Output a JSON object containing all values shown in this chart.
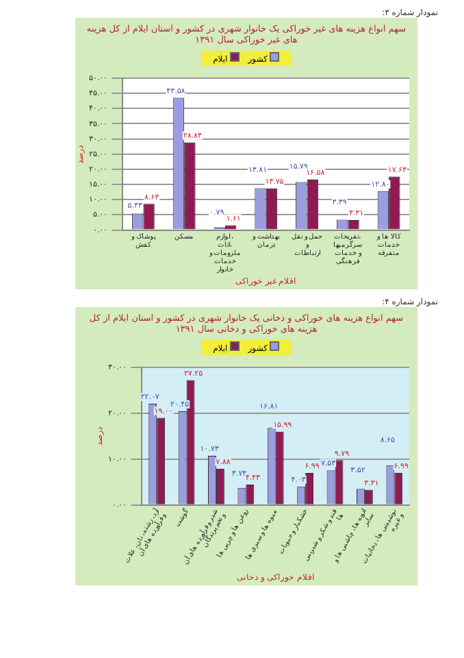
{
  "chart_data": [
    {
      "type": "bar",
      "title": "سهم انواع هزینه های غیر خوراکی یک خانوار شهری در کشور و استان ایلام از کل هزینه های غیر خوراکی سال ۱۳۹۱",
      "xlabel": "اقلام غیر خوراکی",
      "ylabel": "درصد",
      "annotations": [
        "نمودار شماره ۳:"
      ],
      "categories": [
        "پوشاک و کفش",
        "مسکن",
        "لوازم، اثاث، ملزومات و خدمات خانوار",
        "بهداشت و درمان",
        "حمل و نقل و ارتباطات",
        "تفریحات، سرگرمیها و خدمات فرهنگی",
        "کالا ها و خدمات متفرقه"
      ],
      "series": [
        {
          "name": "کشور",
          "color": "#9c9ce0",
          "values": [
            5.43,
            43.58,
            0.79,
            13.81,
            15.79,
            3.39,
            12.8
          ],
          "value_labels": [
            "۵.۴۳",
            "۴۳.۵۸",
            "۰.۷۹",
            "۱۳.۸۱",
            "۱۵.۷۹",
            "۳.۳۹",
            "۱۲.۸۰"
          ]
        },
        {
          "name": "ایلام",
          "color": "#8e1c52",
          "values": [
            8.63,
            28.84,
            1.61,
            13.75,
            16.58,
            3.31,
            17.63
          ],
          "value_labels": [
            "۸.۶۳",
            "۲۸.۸۴",
            "۱.۶۱",
            "۱۳.۷۵",
            "۱۶.۵۸",
            "۳.۳۱",
            "۱۷.۶۳"
          ]
        }
      ],
      "ylim": [
        0,
        50
      ],
      "yticks": [
        {
          "value": 0,
          "label": "۰.۰۰"
        },
        {
          "value": 5,
          "label": "۵.۰۰"
        },
        {
          "value": 10,
          "label": "۱۰.۰۰"
        },
        {
          "value": 15,
          "label": "۱۵.۰۰"
        },
        {
          "value": 20,
          "label": "۲۰.۰۰"
        },
        {
          "value": 25,
          "label": "۲۵.۰۰"
        },
        {
          "value": 30,
          "label": "۳۰.۰۰"
        },
        {
          "value": 35,
          "label": "۳۵.۰۰"
        },
        {
          "value": 40,
          "label": "۴۰.۰۰"
        },
        {
          "value": 45,
          "label": "۴۵.۰۰"
        },
        {
          "value": 50,
          "label": "۵۰.۰۰"
        }
      ],
      "grid": "y",
      "legend": "top"
    },
    {
      "type": "bar",
      "title": "سهم انواع هزینه های خوراکی و دخانی یک خانوار شهری در کشور و استان ایلام از کل هزینه های خوراکی و دخانی سال ۱۳۹۱",
      "xlabel": "اقلام خوراکی و دخانی",
      "ylabel": "درصد",
      "annotations": [
        "نمودار شماره ۴:"
      ],
      "categories": [
        "آرد، رشته، نان، غلات و فرآورده های آن",
        "گوشت",
        "شیر و فرآورده های آن و تخم پرندگان",
        "روغن ها و چربی ها",
        "میوه ها و سبزی ها",
        "خشکبار و حبوبات",
        "قند و شکر و شیرینی ها",
        "ادویه ها، چاشنی ها و سایر",
        "نوشیدنی ها، دخانیات و غیره"
      ],
      "series": [
        {
          "name": "کشور",
          "color": "#9c9ce0",
          "values": [
            22.07,
            20.45,
            10.73,
            3.73,
            16.81,
            4.03,
            7.53,
            3.52,
            8.65
          ],
          "value_labels": [
            "۲۲.۰۷",
            "۲۰.۴۵",
            "۱۰.۷۳",
            "۳.۷۳",
            "۱۶.۸۱",
            "۴.۰۳",
            "۷.۵۳",
            "۳.۵۲",
            "۸.۶۵"
          ]
        },
        {
          "name": "ایلام",
          "color": "#8e1c52",
          "values": [
            19.0,
            27.25,
            7.88,
            4.43,
            15.99,
            6.99,
            9.79,
            3.31,
            6.99
          ],
          "value_labels": [
            "۱۹.۰۰",
            "۲۷.۲۵",
            "۷.۸۸",
            "۴.۴۳",
            "۱۵.۹۹",
            "۶.۹۹",
            "۹.۷۹",
            "۳.۳۱",
            "۶.۹۹"
          ]
        }
      ],
      "ylim": [
        0,
        30
      ],
      "yticks": [
        {
          "value": 0,
          "label": "۰.۰۰"
        },
        {
          "value": 10,
          "label": "۱۰.۰۰"
        },
        {
          "value": 20,
          "label": "۲۰.۰۰"
        },
        {
          "value": 30,
          "label": "۳۰.۰۰"
        }
      ],
      "grid": "y",
      "legend": "top"
    }
  ]
}
